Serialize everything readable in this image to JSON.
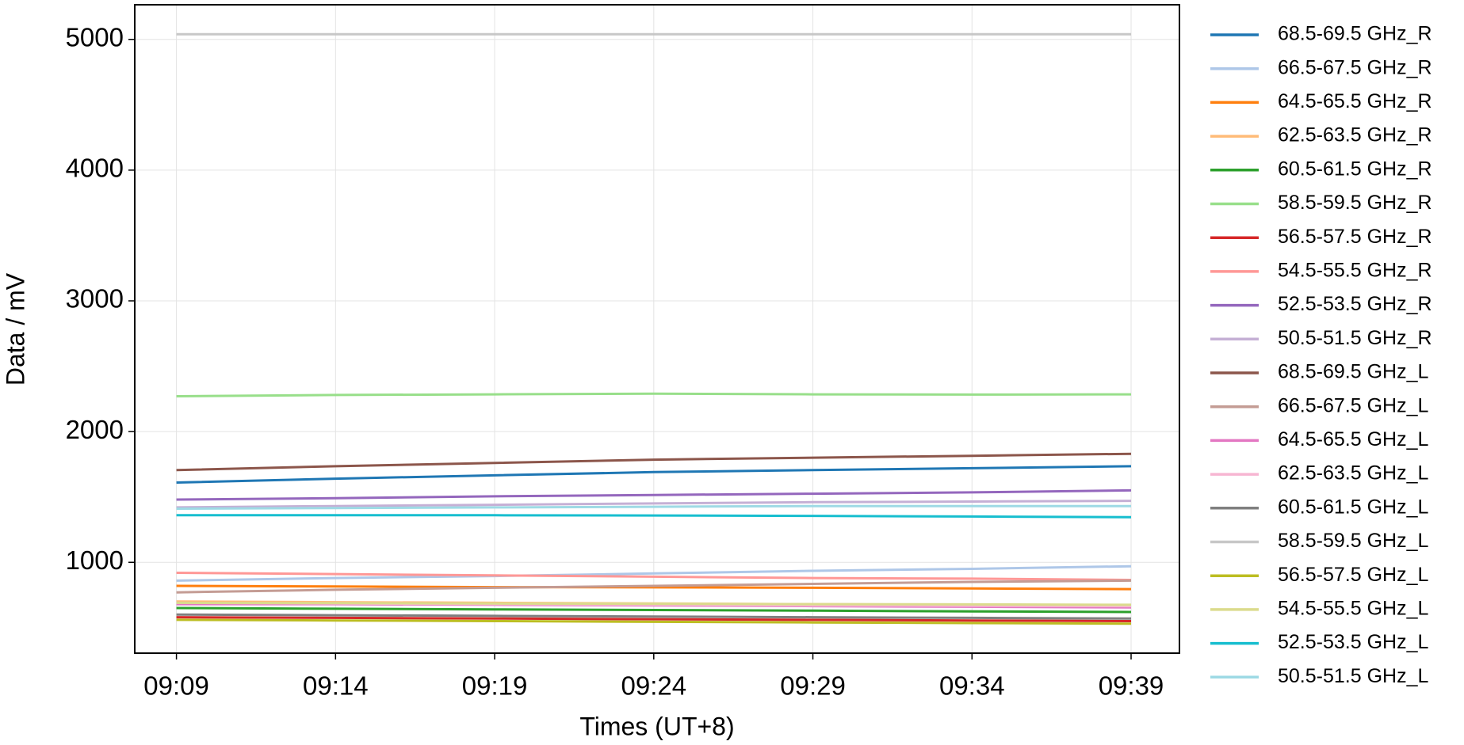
{
  "chart_data": {
    "type": "line",
    "x_label": "Times (UT+8)",
    "y_label": "Data / mV",
    "categories": [
      "09:09",
      "09:14",
      "09:19",
      "09:24",
      "09:29",
      "09:34",
      "09:39"
    ],
    "ylim": [
      305,
      5265
    ],
    "yticks": [
      1000,
      2000,
      3000,
      4000,
      5000
    ],
    "grid": true,
    "legend": "outside-right",
    "series": [
      {
        "name": "68.5-69.5 GHz_R",
        "color": "#1f77b4",
        "values": [
          1610,
          1640,
          1665,
          1690,
          1705,
          1720,
          1735
        ]
      },
      {
        "name": "66.5-67.5 GHz_R",
        "color": "#aec7e8",
        "values": [
          860,
          880,
          895,
          915,
          935,
          950,
          970
        ]
      },
      {
        "name": "64.5-65.5 GHz_R",
        "color": "#ff7f0e",
        "values": [
          820,
          815,
          810,
          808,
          805,
          800,
          795
        ]
      },
      {
        "name": "62.5-63.5 GHz_R",
        "color": "#ffbb78",
        "values": [
          700,
          695,
          690,
          685,
          680,
          675,
          670
        ]
      },
      {
        "name": "60.5-61.5 GHz_R",
        "color": "#2ca02c",
        "values": [
          650,
          645,
          640,
          635,
          630,
          625,
          620
        ]
      },
      {
        "name": "58.5-59.5 GHz_R",
        "color": "#98df8a",
        "values": [
          2270,
          2280,
          2285,
          2290,
          2285,
          2283,
          2285
        ]
      },
      {
        "name": "56.5-57.5 GHz_R",
        "color": "#d62728",
        "values": [
          580,
          575,
          570,
          565,
          560,
          555,
          550
        ]
      },
      {
        "name": "54.5-55.5 GHz_R",
        "color": "#ff9896",
        "values": [
          920,
          910,
          900,
          890,
          880,
          875,
          865
        ]
      },
      {
        "name": "52.5-53.5 GHz_R",
        "color": "#9467bd",
        "values": [
          1480,
          1490,
          1505,
          1515,
          1525,
          1535,
          1550
        ]
      },
      {
        "name": "50.5-51.5 GHz_R",
        "color": "#c5b0d5",
        "values": [
          1420,
          1430,
          1440,
          1450,
          1460,
          1465,
          1470
        ]
      },
      {
        "name": "68.5-69.5 GHz_L",
        "color": "#8c564b",
        "values": [
          1705,
          1735,
          1760,
          1785,
          1800,
          1815,
          1830
        ]
      },
      {
        "name": "66.5-67.5 GHz_L",
        "color": "#c49c94",
        "values": [
          770,
          790,
          805,
          820,
          835,
          850,
          860
        ]
      },
      {
        "name": "64.5-65.5 GHz_L",
        "color": "#e377c2",
        "values": [
          680,
          680,
          675,
          670,
          665,
          660,
          655
        ]
      },
      {
        "name": "62.5-63.5 GHz_L",
        "color": "#f7b6d2",
        "values": [
          690,
          685,
          680,
          675,
          670,
          668,
          665
        ]
      },
      {
        "name": "60.5-61.5 GHz_L",
        "color": "#7f7f7f",
        "values": [
          600,
          595,
          590,
          585,
          580,
          575,
          570
        ]
      },
      {
        "name": "58.5-59.5 GHz_L",
        "color": "#c7c7c7",
        "values": [
          5040,
          5040,
          5040,
          5040,
          5040,
          5040,
          5040
        ]
      },
      {
        "name": "56.5-57.5 GHz_L",
        "color": "#bcbd22",
        "values": [
          560,
          555,
          550,
          545,
          540,
          535,
          530
        ]
      },
      {
        "name": "54.5-55.5 GHz_L",
        "color": "#dbdb8d",
        "values": [
          690,
          688,
          685,
          683,
          680,
          678,
          675
        ]
      },
      {
        "name": "52.5-53.5 GHz_L",
        "color": "#17becf",
        "values": [
          1360,
          1360,
          1360,
          1358,
          1355,
          1350,
          1345
        ]
      },
      {
        "name": "50.5-51.5 GHz_L",
        "color": "#9edae5",
        "values": [
          1410,
          1415,
          1420,
          1425,
          1430,
          1430,
          1430
        ]
      }
    ]
  }
}
